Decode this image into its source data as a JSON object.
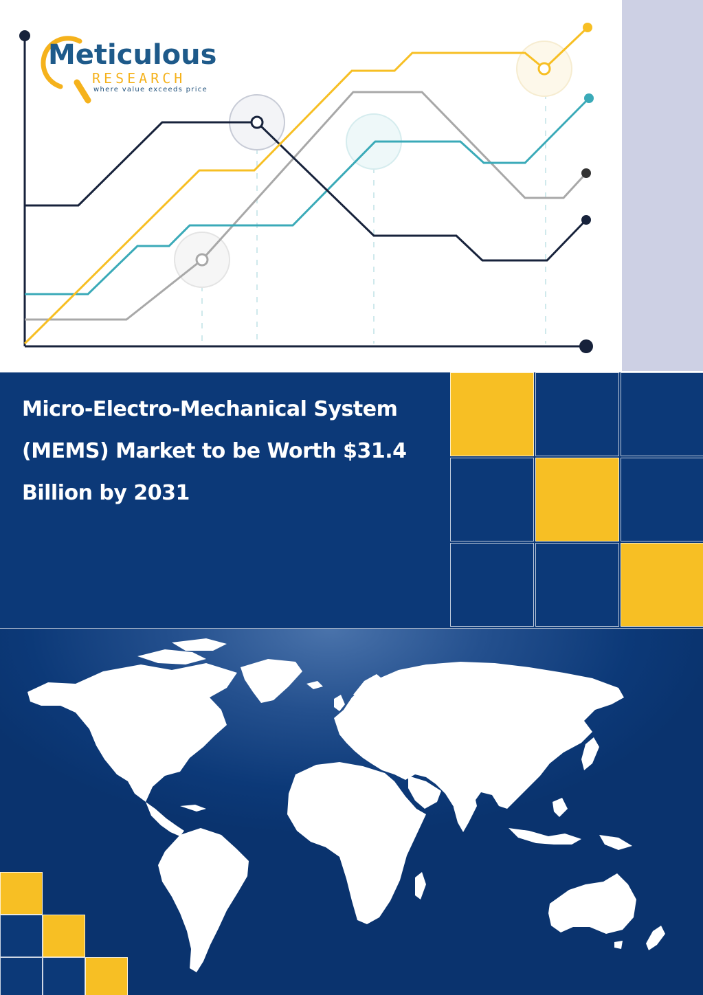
{
  "brand": {
    "name": "Meticulous",
    "sub": "RESEARCH",
    "tagline": "where value exceeds price"
  },
  "title": "Micro-Electro-Mechanical System (MEMS) Market to be Worth $31.4 Billion by 2031",
  "colors": {
    "navy": "#0c3978",
    "yellow": "#f7bf24",
    "teal": "#3aaab8",
    "grey": "#a8a8a8",
    "dark": "#17223b",
    "lavender": "#cdd0e4"
  },
  "decorative_icons": [
    "magnifier-logo-icon",
    "world-map-icon"
  ]
}
